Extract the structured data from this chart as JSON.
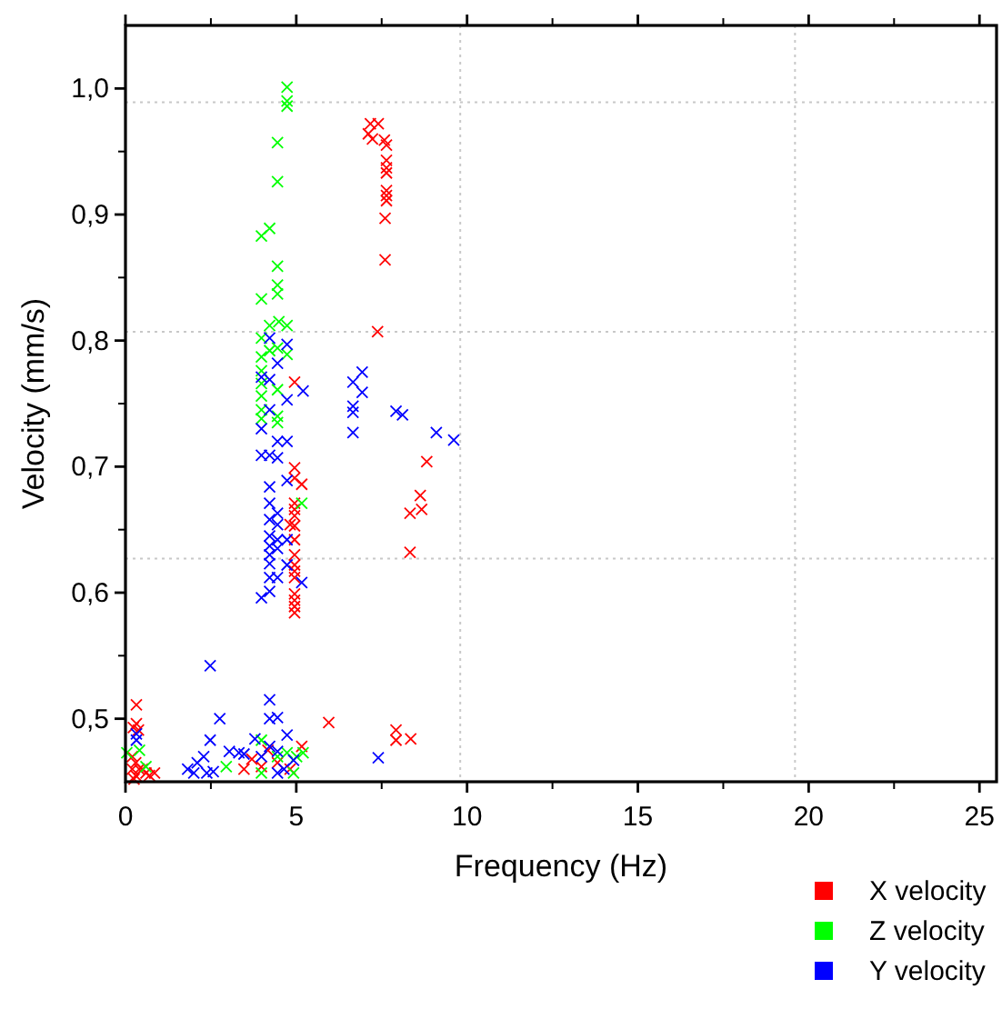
{
  "chart_data": {
    "type": "scatter",
    "xlabel": "Frequency (Hz)",
    "ylabel": "Velocity (mm/s)",
    "xlim": [
      0,
      25.5
    ],
    "ylim": [
      0.45,
      1.05
    ],
    "xticks": [
      0,
      5,
      10,
      15,
      20,
      25
    ],
    "yticks": [
      {
        "value": 0.5,
        "label": "0,5"
      },
      {
        "value": 0.6,
        "label": "0,6"
      },
      {
        "value": 0.7,
        "label": "0,7"
      },
      {
        "value": 0.8,
        "label": "0,8"
      },
      {
        "value": 0.9,
        "label": "0,9"
      },
      {
        "value": 1.0,
        "label": "1,0"
      }
    ],
    "marker": "cross",
    "legend": "bottom right",
    "grid": false,
    "ref_lines": [
      {
        "axis": "x",
        "value": 9.8,
        "color": "#c8c8c8",
        "line_style": "dotted"
      },
      {
        "axis": "x",
        "value": 19.6,
        "color": "#c8c8c8",
        "line_style": "dotted"
      },
      {
        "axis": "y",
        "value": 0.627,
        "color": "#c8c8c8",
        "line_style": "dotted"
      },
      {
        "axis": "y",
        "value": 0.807,
        "color": "#c8c8c8",
        "line_style": "dotted"
      },
      {
        "axis": "y",
        "value": 0.989,
        "color": "#c8c8c8",
        "line_style": "dotted"
      }
    ],
    "series": [
      {
        "name": "X velocity",
        "color": "#ff0000",
        "x": [
          7.17,
          7.4,
          7.11,
          7.23,
          7.58,
          7.64,
          7.64,
          7.64,
          7.64,
          7.64,
          7.64,
          7.64,
          7.6,
          7.6,
          7.38,
          4.95,
          4.95,
          4.95,
          5.16,
          4.82,
          4.95,
          4.95,
          4.95,
          4.95,
          4.95,
          4.95,
          4.95,
          4.95,
          4.95,
          4.95,
          4.95,
          4.95,
          4.95,
          8.82,
          8.63,
          8.67,
          8.33,
          8.33,
          5.95,
          7.92,
          7.92,
          8.35,
          5.16,
          3.47,
          3.7,
          4.17,
          3.98,
          4.45,
          4.82,
          0.32,
          0.32,
          0.23,
          0.38,
          0.2,
          0.3,
          0.4,
          0.3,
          0.5,
          0.6,
          0.7,
          0.85,
          0.2,
          0.25
        ],
        "values": [
          0.972,
          0.972,
          0.964,
          0.96,
          0.959,
          0.955,
          0.943,
          0.937,
          0.933,
          0.919,
          0.915,
          0.911,
          0.897,
          0.864,
          0.807,
          0.767,
          0.699,
          0.691,
          0.686,
          0.654,
          0.671,
          0.666,
          0.661,
          0.653,
          0.642,
          0.63,
          0.622,
          0.617,
          0.612,
          0.599,
          0.594,
          0.589,
          0.584,
          0.704,
          0.677,
          0.666,
          0.663,
          0.632,
          0.497,
          0.491,
          0.483,
          0.484,
          0.478,
          0.46,
          0.468,
          0.475,
          0.462,
          0.465,
          0.46,
          0.511,
          0.496,
          0.493,
          0.491,
          0.47,
          0.465,
          0.46,
          0.455,
          0.46,
          0.457,
          0.455,
          0.457,
          0.46,
          0.452
        ]
      },
      {
        "name": "Z velocity",
        "color": "#00ff00",
        "x": [
          4.73,
          4.73,
          4.73,
          4.45,
          4.45,
          3.98,
          4.22,
          4.45,
          4.45,
          4.45,
          3.98,
          4.22,
          4.49,
          4.73,
          4.73,
          3.98,
          4.22,
          4.45,
          3.98,
          3.98,
          3.98,
          3.98,
          3.98,
          4.45,
          4.45,
          4.45,
          3.98,
          5.16,
          2.95,
          3.98,
          4.45,
          4.73,
          5.01,
          5.2,
          4.92,
          3.98,
          0.04,
          0.41,
          0.6
        ],
        "values": [
          1.001,
          0.99,
          0.986,
          0.957,
          0.926,
          0.883,
          0.889,
          0.859,
          0.844,
          0.837,
          0.833,
          0.812,
          0.815,
          0.812,
          0.789,
          0.802,
          0.792,
          0.794,
          0.787,
          0.776,
          0.766,
          0.756,
          0.745,
          0.761,
          0.74,
          0.735,
          0.738,
          0.671,
          0.462,
          0.483,
          0.47,
          0.473,
          0.47,
          0.473,
          0.457,
          0.457,
          0.473,
          0.475,
          0.462
        ]
      },
      {
        "name": "Y velocity",
        "color": "#0000ff",
        "x": [
          4.22,
          4.73,
          4.45,
          4.22,
          3.98,
          4.73,
          5.2,
          4.22,
          3.98,
          3.98,
          4.22,
          4.45,
          4.45,
          4.73,
          4.73,
          4.22,
          4.22,
          4.45,
          4.22,
          4.45,
          4.22,
          4.45,
          4.73,
          4.22,
          4.22,
          4.45,
          4.73,
          4.22,
          4.22,
          4.45,
          3.98,
          4.22,
          5.16,
          6.66,
          6.93,
          6.93,
          6.66,
          6.66,
          6.66,
          7.92,
          8.11,
          9.1,
          9.61,
          7.4,
          2.48,
          2.76,
          2.48,
          4.22,
          4.22,
          4.45,
          4.73,
          3.79,
          4.22,
          4.45,
          3.98,
          4.92,
          4.64,
          3.04,
          3.32,
          3.47,
          2.29,
          2.1,
          1.82,
          2.0,
          2.38,
          2.57,
          0.32,
          0.32,
          4.45
        ],
        "values": [
          0.802,
          0.797,
          0.782,
          0.769,
          0.771,
          0.753,
          0.76,
          0.745,
          0.73,
          0.709,
          0.709,
          0.707,
          0.72,
          0.72,
          0.689,
          0.684,
          0.671,
          0.663,
          0.658,
          0.654,
          0.645,
          0.642,
          0.642,
          0.637,
          0.63,
          0.635,
          0.622,
          0.623,
          0.612,
          0.612,
          0.596,
          0.601,
          0.608,
          0.767,
          0.775,
          0.759,
          0.748,
          0.743,
          0.727,
          0.744,
          0.741,
          0.727,
          0.721,
          0.469,
          0.542,
          0.5,
          0.483,
          0.515,
          0.5,
          0.501,
          0.487,
          0.484,
          0.478,
          0.474,
          0.47,
          0.467,
          0.46,
          0.474,
          0.473,
          0.472,
          0.47,
          0.465,
          0.46,
          0.457,
          0.457,
          0.458,
          0.488,
          0.483,
          0.457
        ]
      }
    ]
  }
}
